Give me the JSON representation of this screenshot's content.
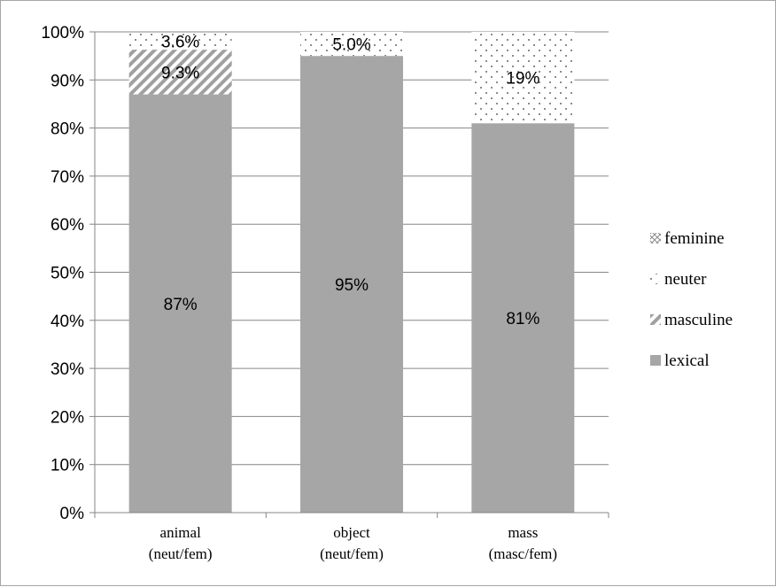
{
  "chart_data": {
    "type": "bar",
    "stacked": true,
    "percent": true,
    "categories": [
      [
        "animal",
        "(neut/fem)"
      ],
      [
        "object",
        "(neut/fem)"
      ],
      [
        "mass",
        "(masc/fem)"
      ]
    ],
    "series": [
      {
        "name": "lexical",
        "pattern": "solid",
        "values": [
          87,
          95,
          81
        ],
        "labels": [
          "87%",
          "95%",
          "81%"
        ]
      },
      {
        "name": "masculine",
        "pattern": "diagonal",
        "values": [
          9.3,
          0,
          0
        ],
        "labels": [
          "9.3%",
          "",
          ""
        ]
      },
      {
        "name": "neuter",
        "pattern": "dots",
        "values": [
          3.6,
          5.0,
          19
        ],
        "labels": [
          "3.6%",
          "5.0%",
          "19%"
        ]
      },
      {
        "name": "feminine",
        "pattern": "cross",
        "values": [
          0,
          0,
          0
        ],
        "labels": [
          "",
          "",
          ""
        ]
      }
    ],
    "legend_order": [
      "feminine",
      "neuter",
      "masculine",
      "lexical"
    ],
    "yticks": [
      "0%",
      "10%",
      "20%",
      "30%",
      "40%",
      "50%",
      "60%",
      "70%",
      "80%",
      "90%",
      "100%"
    ],
    "ylim": [
      0,
      100
    ],
    "legend_position": "right",
    "grid": true,
    "colors": {
      "bar": "#a6a6a6",
      "grid": "#868686",
      "pattern_dark": "#8c8c8c"
    }
  }
}
